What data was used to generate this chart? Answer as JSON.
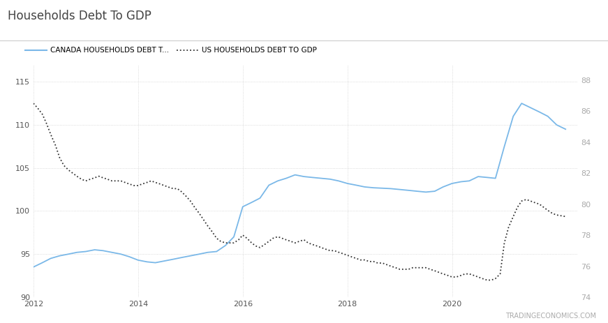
{
  "title": "Households Debt To GDP",
  "canada_label": "CANADA HOUSEHOLDS DEBT T...",
  "us_label": "US HOUSEHOLDS DEBT TO GDP",
  "watermark": "TRADINGECONOMICS.COM",
  "canada_color": "#7ab8e8",
  "us_color": "#333333",
  "background_color": "#ffffff",
  "grid_color": "#d0d0d0",
  "left_ylim": [
    90,
    117
  ],
  "right_ylim": [
    74,
    89
  ],
  "left_yticks": [
    90,
    95,
    100,
    105,
    110,
    115
  ],
  "right_yticks": [
    74,
    76,
    78,
    80,
    82,
    84,
    86,
    88
  ],
  "xlim": [
    2012,
    2022.4
  ],
  "xticks": [
    2012,
    2014,
    2016,
    2018,
    2020
  ],
  "canada_x": [
    2012.0,
    2012.17,
    2012.33,
    2012.5,
    2012.67,
    2012.83,
    2013.0,
    2013.17,
    2013.33,
    2013.5,
    2013.67,
    2013.83,
    2014.0,
    2014.17,
    2014.33,
    2014.5,
    2014.67,
    2014.83,
    2015.0,
    2015.17,
    2015.33,
    2015.5,
    2015.67,
    2015.83,
    2016.0,
    2016.17,
    2016.33,
    2016.5,
    2016.67,
    2016.83,
    2017.0,
    2017.17,
    2017.33,
    2017.5,
    2017.67,
    2017.83,
    2018.0,
    2018.17,
    2018.33,
    2018.5,
    2018.67,
    2018.83,
    2019.0,
    2019.17,
    2019.33,
    2019.5,
    2019.67,
    2019.83,
    2020.0,
    2020.17,
    2020.33,
    2020.5,
    2020.67,
    2020.83,
    2021.0,
    2021.17,
    2021.33,
    2021.5,
    2021.67,
    2021.83,
    2022.0,
    2022.17
  ],
  "canada_y": [
    93.5,
    94.0,
    94.5,
    94.8,
    95.0,
    95.2,
    95.3,
    95.5,
    95.4,
    95.2,
    95.0,
    94.7,
    94.3,
    94.1,
    94.0,
    94.2,
    94.4,
    94.6,
    94.8,
    95.0,
    95.2,
    95.3,
    96.0,
    97.0,
    100.5,
    101.0,
    101.5,
    103.0,
    103.5,
    103.8,
    104.2,
    104.0,
    103.9,
    103.8,
    103.7,
    103.5,
    103.2,
    103.0,
    102.8,
    102.7,
    102.65,
    102.6,
    102.5,
    102.4,
    102.3,
    102.2,
    102.3,
    102.8,
    103.2,
    103.4,
    103.5,
    104.0,
    103.9,
    103.8,
    107.5,
    111.0,
    112.5,
    112.0,
    111.5,
    111.0,
    110.0,
    109.5
  ],
  "us_x": [
    2012.0,
    2012.08,
    2012.17,
    2012.25,
    2012.33,
    2012.42,
    2012.5,
    2012.58,
    2012.67,
    2012.75,
    2012.83,
    2012.92,
    2013.0,
    2013.08,
    2013.17,
    2013.25,
    2013.33,
    2013.42,
    2013.5,
    2013.58,
    2013.67,
    2013.75,
    2013.83,
    2013.92,
    2014.0,
    2014.08,
    2014.17,
    2014.25,
    2014.33,
    2014.42,
    2014.5,
    2014.58,
    2014.67,
    2014.75,
    2014.83,
    2014.92,
    2015.0,
    2015.08,
    2015.17,
    2015.25,
    2015.33,
    2015.42,
    2015.5,
    2015.58,
    2015.67,
    2015.75,
    2015.83,
    2015.92,
    2016.0,
    2016.08,
    2016.17,
    2016.25,
    2016.33,
    2016.42,
    2016.5,
    2016.58,
    2016.67,
    2016.75,
    2016.83,
    2016.92,
    2017.0,
    2017.08,
    2017.17,
    2017.25,
    2017.33,
    2017.42,
    2017.5,
    2017.58,
    2017.67,
    2017.75,
    2017.83,
    2017.92,
    2018.0,
    2018.08,
    2018.17,
    2018.25,
    2018.33,
    2018.42,
    2018.5,
    2018.58,
    2018.67,
    2018.75,
    2018.83,
    2018.92,
    2019.0,
    2019.08,
    2019.17,
    2019.25,
    2019.33,
    2019.42,
    2019.5,
    2019.58,
    2019.67,
    2019.75,
    2019.83,
    2019.92,
    2020.0,
    2020.08,
    2020.17,
    2020.25,
    2020.33,
    2020.42,
    2020.5,
    2020.58,
    2020.67,
    2020.75,
    2020.83,
    2020.92,
    2021.0,
    2021.08,
    2021.17,
    2021.25,
    2021.33,
    2021.42,
    2021.5,
    2021.58,
    2021.67,
    2021.75,
    2021.83,
    2021.92,
    2022.0,
    2022.17
  ],
  "us_y": [
    86.5,
    86.2,
    85.8,
    85.2,
    84.5,
    83.8,
    83.0,
    82.5,
    82.2,
    82.0,
    81.8,
    81.6,
    81.5,
    81.6,
    81.7,
    81.8,
    81.7,
    81.6,
    81.5,
    81.5,
    81.5,
    81.4,
    81.3,
    81.2,
    81.2,
    81.3,
    81.4,
    81.5,
    81.4,
    81.3,
    81.2,
    81.1,
    81.0,
    81.0,
    80.8,
    80.5,
    80.2,
    79.8,
    79.4,
    79.0,
    78.6,
    78.2,
    77.8,
    77.6,
    77.5,
    77.5,
    77.5,
    77.7,
    78.0,
    77.8,
    77.5,
    77.3,
    77.2,
    77.4,
    77.6,
    77.8,
    77.9,
    77.8,
    77.7,
    77.6,
    77.5,
    77.6,
    77.7,
    77.5,
    77.4,
    77.3,
    77.2,
    77.1,
    77.0,
    77.0,
    76.9,
    76.8,
    76.7,
    76.6,
    76.5,
    76.4,
    76.4,
    76.3,
    76.3,
    76.2,
    76.2,
    76.1,
    76.0,
    75.9,
    75.8,
    75.8,
    75.8,
    75.9,
    75.9,
    75.9,
    75.9,
    75.8,
    75.7,
    75.6,
    75.5,
    75.4,
    75.3,
    75.3,
    75.4,
    75.5,
    75.5,
    75.4,
    75.3,
    75.2,
    75.1,
    75.1,
    75.2,
    75.5,
    77.5,
    78.5,
    79.2,
    79.8,
    80.2,
    80.3,
    80.2,
    80.1,
    80.0,
    79.8,
    79.6,
    79.4,
    79.3,
    79.2
  ]
}
